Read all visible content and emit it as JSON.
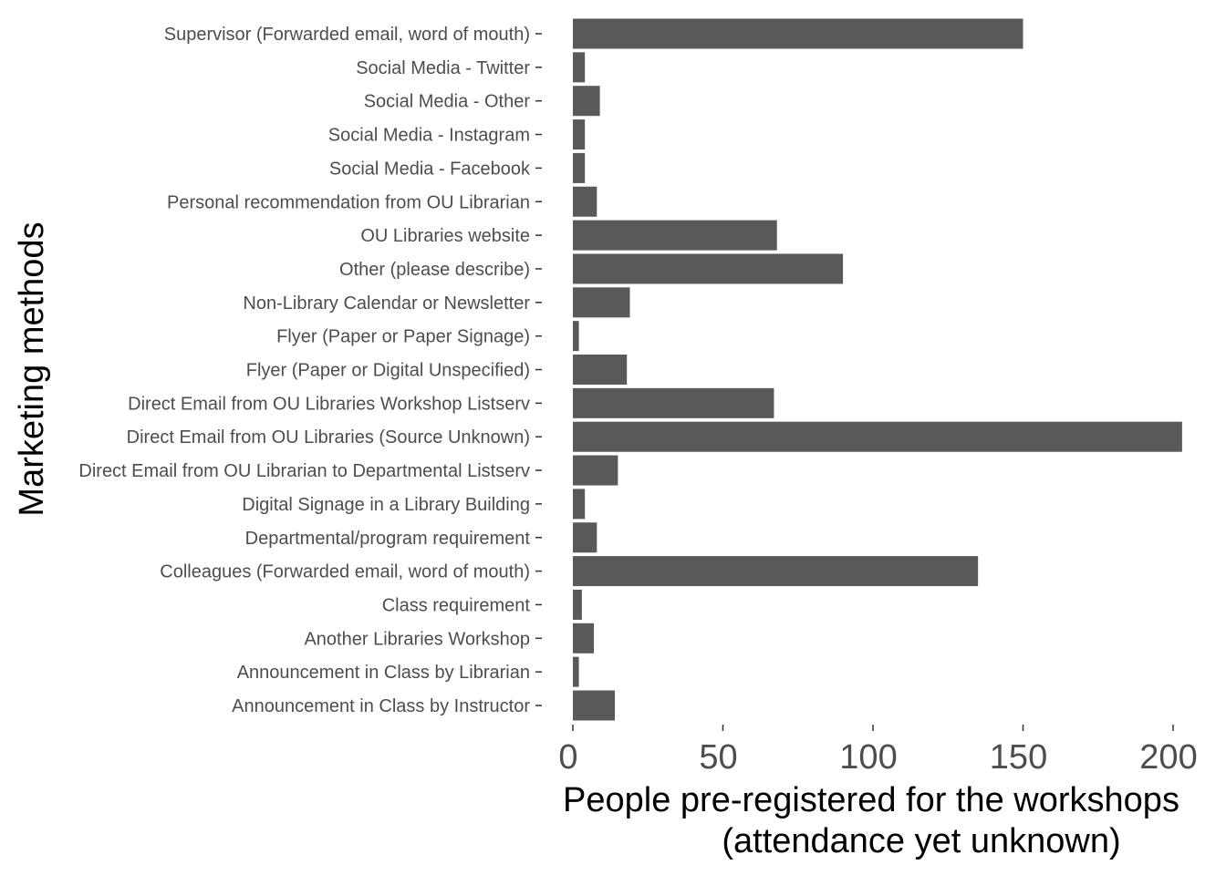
{
  "chart_data": {
    "type": "bar",
    "orientation": "horizontal",
    "title": "",
    "xlabel_lines": [
      "People pre-registered for the workshops",
      "(attendance yet unknown)"
    ],
    "ylabel": "Marketing methods",
    "xlim": [
      0,
      205
    ],
    "x_ticks": [
      0,
      50,
      100,
      150,
      200
    ],
    "x_tick_labels": [
      "0",
      "50",
      "100",
      "150",
      "200"
    ],
    "grid": false,
    "bar_color": "#595959",
    "categories": [
      "Supervisor (Forwarded email, word of mouth)",
      "Social Media - Twitter",
      "Social Media - Other",
      "Social Media - Instagram",
      "Social Media - Facebook",
      "Personal recommendation from OU Librarian",
      "OU Libraries website",
      "Other (please describe)",
      "Non-Library Calendar or Newsletter",
      "Flyer (Paper or Paper Signage)",
      "Flyer (Paper or Digital Unspecified)",
      "Direct Email from OU Libraries Workshop Listserv",
      "Direct Email from OU Libraries (Source Unknown)",
      "Direct Email from OU Librarian to Departmental Listserv",
      "Digital Signage in a Library Building",
      "Departmental/program requirement",
      "Colleagues (Forwarded email, word of mouth)",
      "Class requirement",
      "Another Libraries Workshop",
      "Announcement in Class by Librarian",
      "Announcement in Class by Instructor"
    ],
    "values": [
      150,
      4,
      9,
      4,
      4,
      8,
      68,
      90,
      19,
      2,
      18,
      67,
      203,
      15,
      4,
      8,
      135,
      3,
      7,
      2,
      14
    ]
  }
}
